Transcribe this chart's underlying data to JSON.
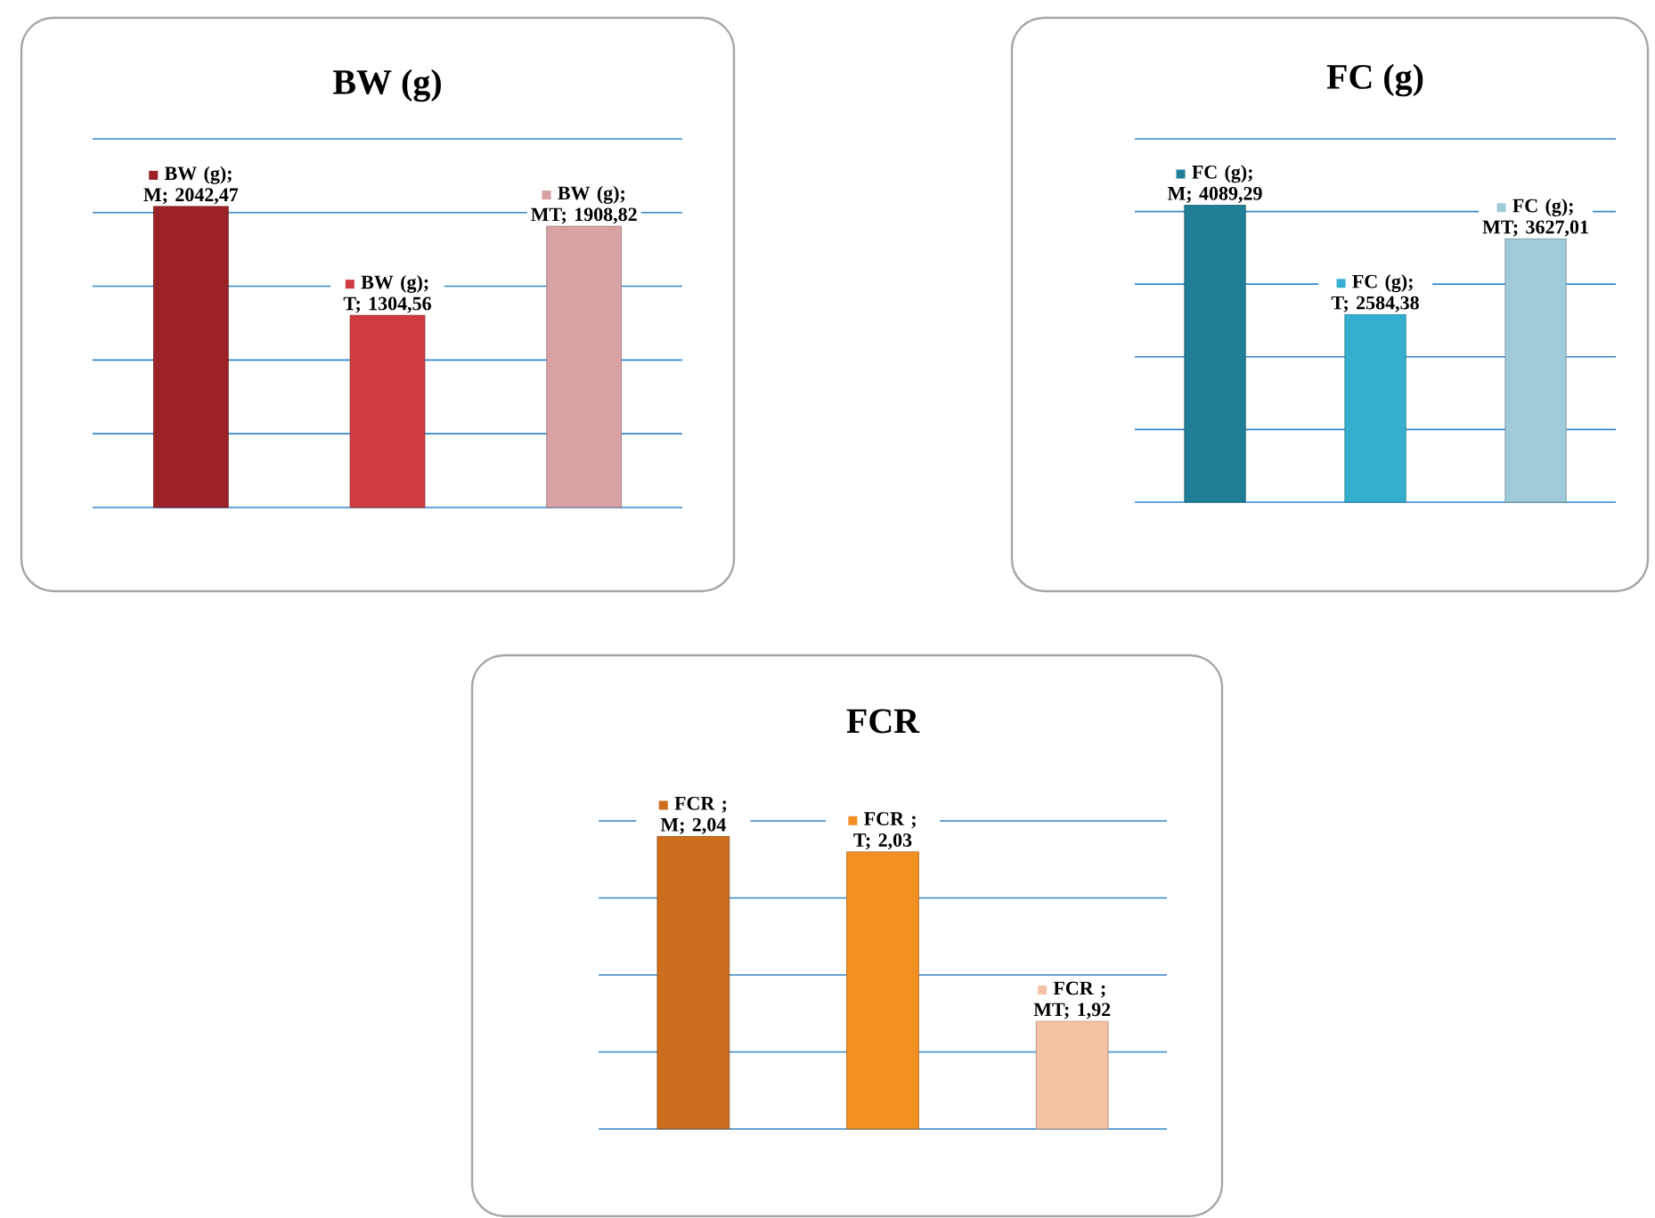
{
  "chart_data": [
    {
      "type": "bar",
      "title": "BW (g)",
      "categories": [
        null,
        null,
        null
      ],
      "values": [
        2042.47,
        1304.56,
        1908.82
      ],
      "colors": [
        "#9b2226",
        "#cf3b3e",
        "#d8a1a4"
      ],
      "value_labels": [
        "BW (g); M; 2042,47",
        "BW (g); T; 1304,56",
        "BW (g); MT; 1908,82"
      ],
      "ylim": [
        0,
        2500
      ],
      "yticks": [
        {
          "value": 0,
          "label": null
        },
        {
          "value": 500,
          "label": null
        },
        {
          "value": 1000,
          "label": null
        },
        {
          "value": 1500,
          "label": null
        },
        {
          "value": 2000,
          "label": null
        },
        {
          "value": 2500,
          "label": null
        }
      ],
      "grid": "y"
    },
    {
      "type": "bar",
      "title": "FC  (g)",
      "categories": [
        null,
        null,
        null
      ],
      "values": [
        4089.29,
        2584.38,
        3627.01
      ],
      "colors": [
        "#1f7f96",
        "#35afd0",
        "#9fcbd9"
      ],
      "value_labels": [
        "FC (g); M; 4089,29",
        "FC (g); T; 2584,38",
        "FC (g); MT; 3627,01"
      ],
      "ylim": [
        0,
        5000
      ],
      "yticks": [
        {
          "value": 0,
          "label": null
        },
        {
          "value": 1000,
          "label": null
        },
        {
          "value": 2000,
          "label": null
        },
        {
          "value": 3000,
          "label": null
        },
        {
          "value": 4000,
          "label": null
        },
        {
          "value": 5000,
          "label": null
        }
      ],
      "grid": "y"
    },
    {
      "type": "bar",
      "title": "FCR",
      "categories": [
        null,
        null,
        null
      ],
      "values": [
        2.04,
        2.03,
        1.92
      ],
      "colors": [
        "#cc6e1c",
        "#f39022",
        "#f5c2a3"
      ],
      "value_labels": [
        "FCR ; M; 2,04",
        "FCR ; T; 2,03",
        "FCR ; MT; 1,92"
      ],
      "ylim": [
        1.85,
        2.05
      ],
      "yticks": [
        {
          "value": 1.85,
          "label": null
        },
        {
          "value": 1.9,
          "label": null
        },
        {
          "value": 1.95,
          "label": null
        },
        {
          "value": 2.0,
          "label": null
        },
        {
          "value": 2.05,
          "label": null
        }
      ],
      "grid": "y"
    }
  ]
}
